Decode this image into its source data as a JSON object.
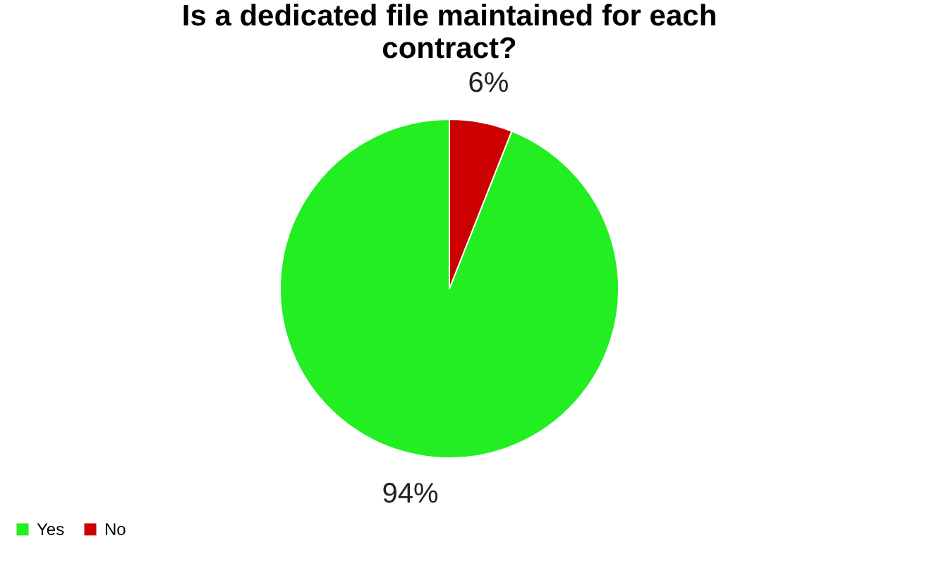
{
  "chart_data": {
    "type": "pie",
    "title": "Is a dedicated file maintained for each contract?",
    "categories": [
      "Yes",
      "No"
    ],
    "values": [
      94,
      6
    ],
    "colors": [
      "#22ee22",
      "#cc0000"
    ],
    "value_labels": [
      "94%",
      "6%"
    ],
    "legend": "bottom"
  }
}
